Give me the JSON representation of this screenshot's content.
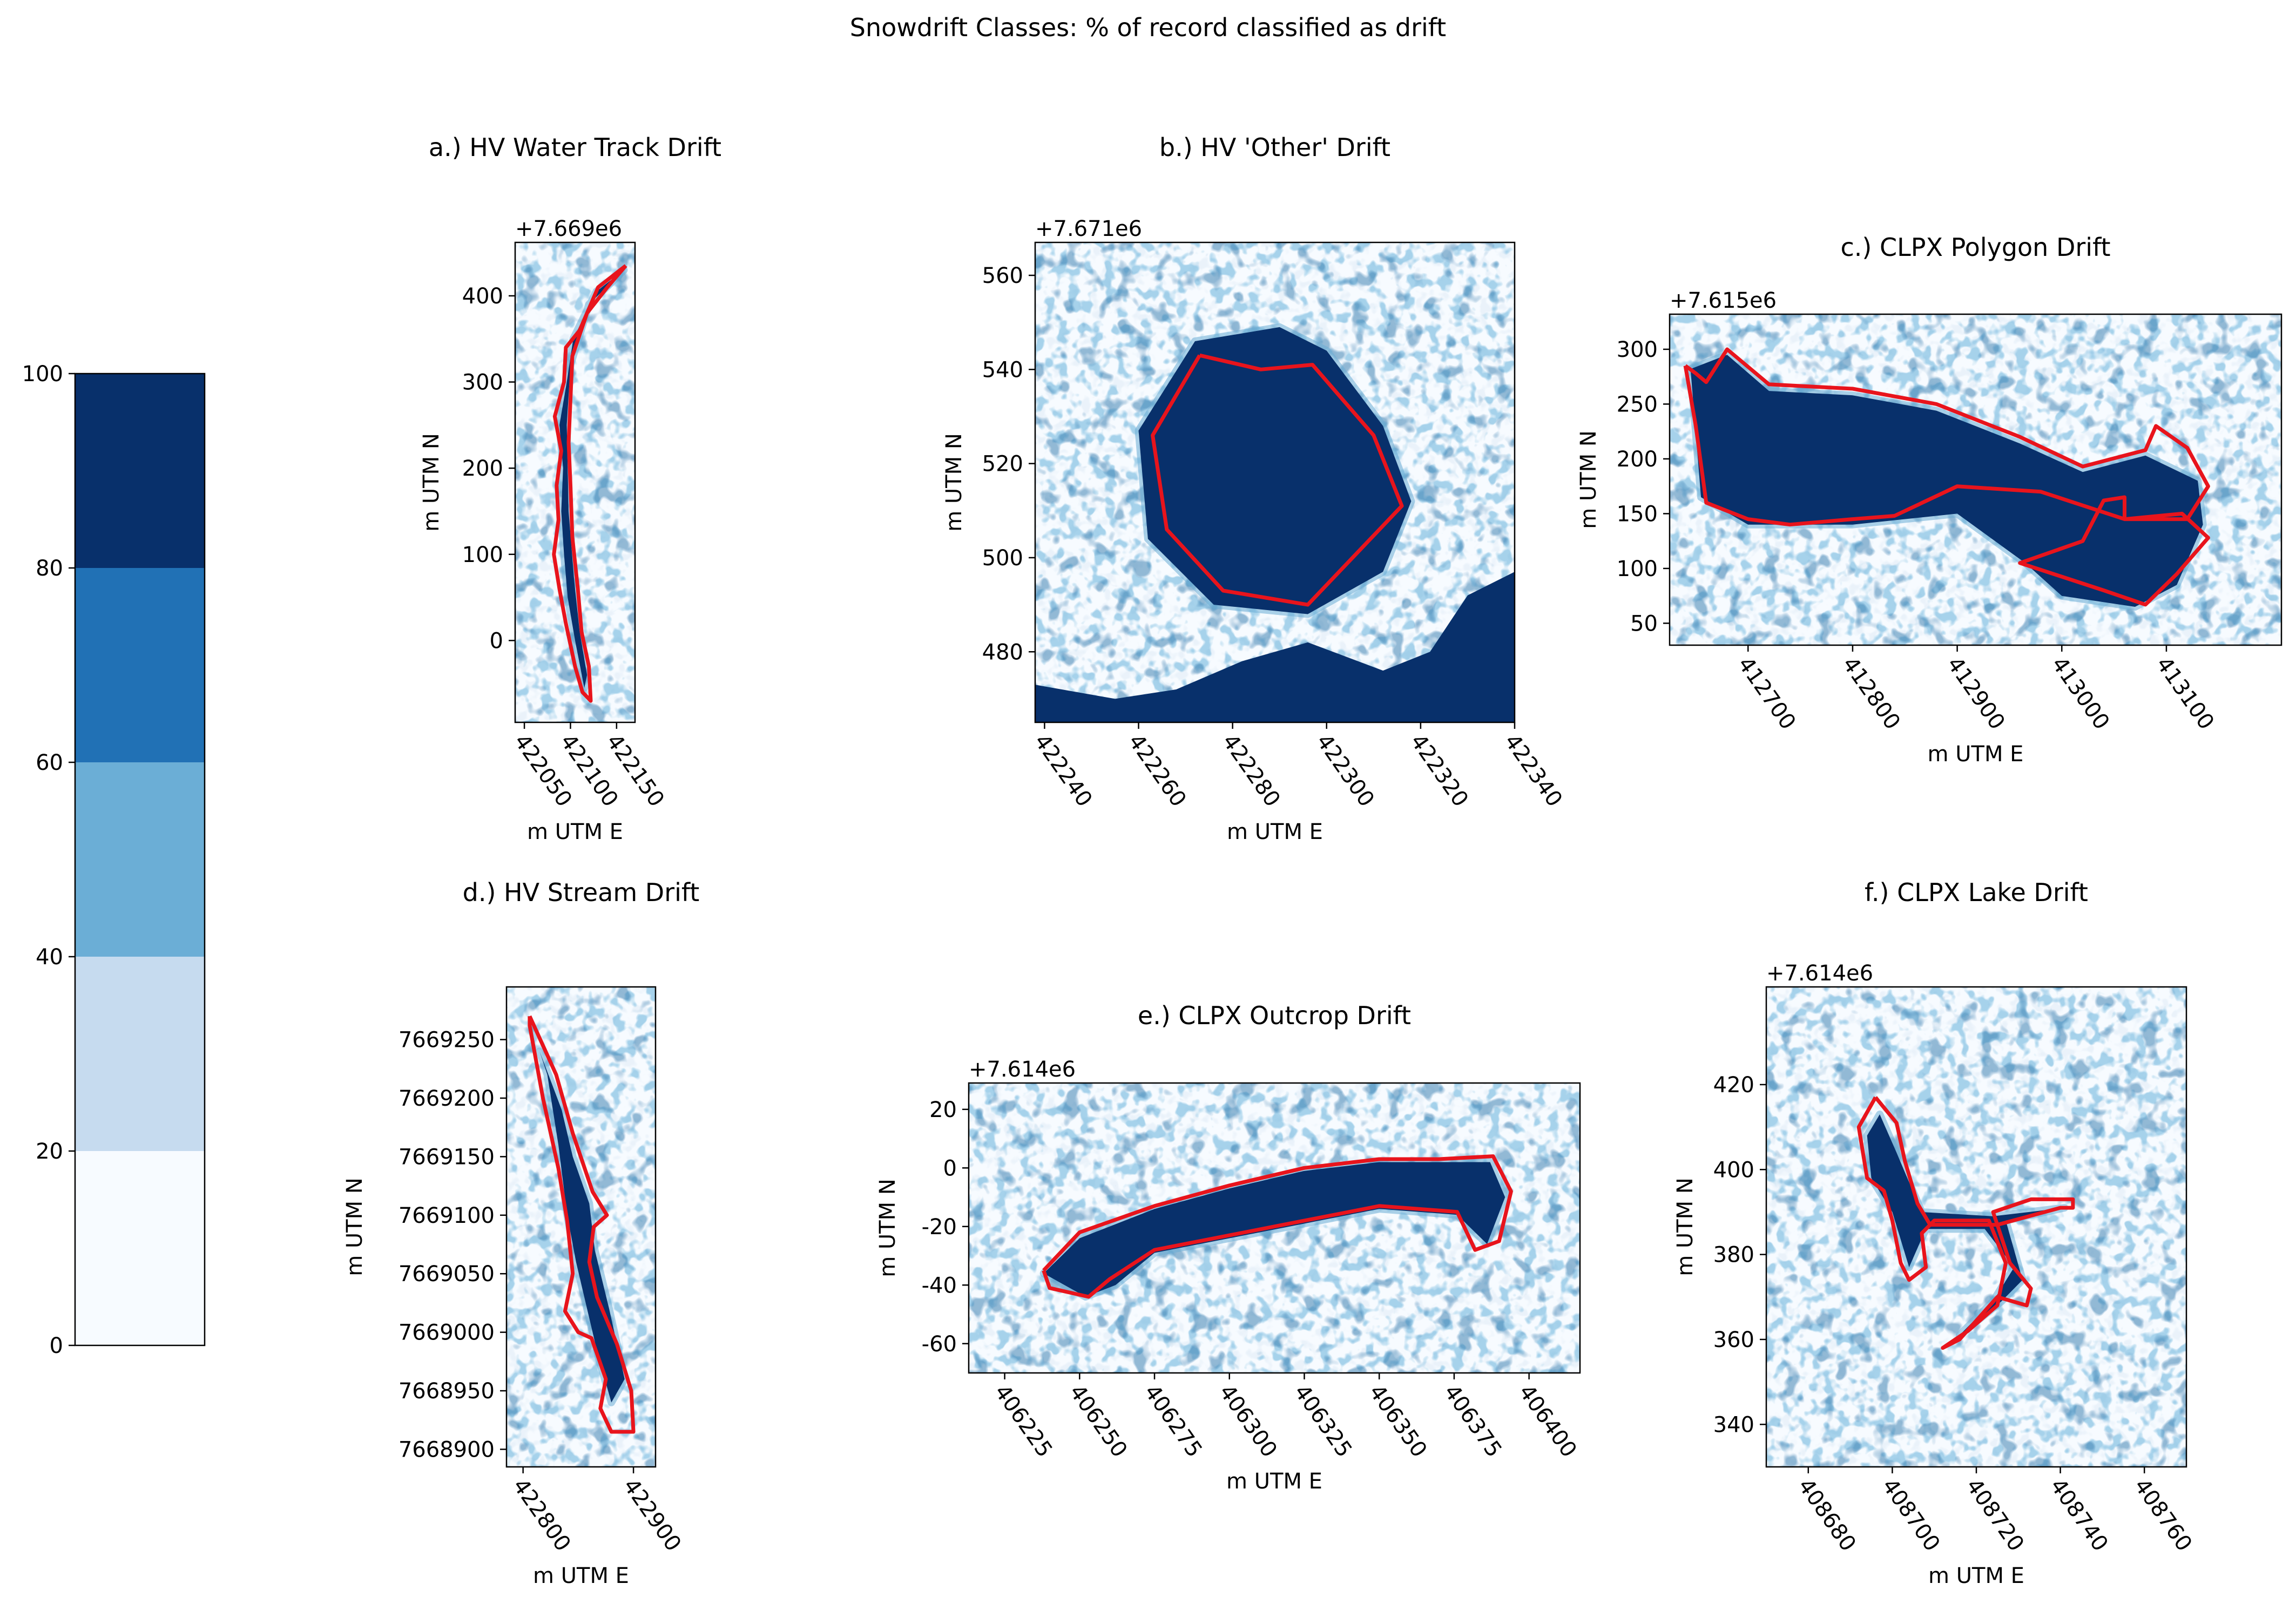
{
  "figure": {
    "suptitle": "Snowdrift Classes: % of record classified as drift",
    "colors": {
      "class_0_20": "#f7fbff",
      "class_20_40": "#c6dbef",
      "class_40_60": "#6baed6",
      "class_60_80": "#2171b5",
      "class_80_100": "#08306b",
      "boundary": "#e8141c"
    }
  },
  "colorbar": {
    "ticks": [
      "0",
      "20",
      "40",
      "60",
      "80",
      "100"
    ],
    "bins": [
      {
        "from": 0,
        "to": 20,
        "color": "#f7fbff"
      },
      {
        "from": 20,
        "to": 40,
        "color": "#c6dbef"
      },
      {
        "from": 40,
        "to": 60,
        "color": "#6baed6"
      },
      {
        "from": 60,
        "to": 80,
        "color": "#2171b5"
      },
      {
        "from": 80,
        "to": 100,
        "color": "#08306b"
      }
    ]
  },
  "chart_data": [
    {
      "id": "a",
      "type": "heatmap",
      "title": "a.) HV Water Track Drift",
      "xlabel": "m UTM E",
      "ylabel": "m UTM N",
      "y_offset_label": "+7.669e6",
      "xlim": [
        422040,
        422170
      ],
      "ylim": [
        -95,
        462
      ],
      "xticks": [
        422050,
        422100,
        422150
      ],
      "yticks": [
        0,
        100,
        200,
        300,
        400
      ],
      "boundary": [
        [
          422160,
          435
        ],
        [
          422130,
          410
        ],
        [
          422110,
          360
        ],
        [
          422095,
          340
        ],
        [
          422093,
          300
        ],
        [
          422083,
          260
        ],
        [
          422090,
          220
        ],
        [
          422085,
          180
        ],
        [
          422087,
          140
        ],
        [
          422082,
          100
        ],
        [
          422088,
          60
        ],
        [
          422095,
          20
        ],
        [
          422105,
          -30
        ],
        [
          422113,
          -60
        ],
        [
          422122,
          -70
        ],
        [
          422120,
          -30
        ],
        [
          422112,
          10
        ],
        [
          422108,
          60
        ],
        [
          422102,
          120
        ],
        [
          422100,
          180
        ],
        [
          422098,
          230
        ],
        [
          422100,
          280
        ],
        [
          422102,
          330
        ],
        [
          422118,
          380
        ],
        [
          422140,
          410
        ],
        [
          422160,
          435
        ]
      ],
      "drift_core": [
        [
          422158,
          430
        ],
        [
          422128,
          405
        ],
        [
          422103,
          350
        ],
        [
          422096,
          300
        ],
        [
          422088,
          250
        ],
        [
          422092,
          200
        ],
        [
          422090,
          150
        ],
        [
          422093,
          100
        ],
        [
          422097,
          50
        ],
        [
          422105,
          0
        ],
        [
          422115,
          -55
        ],
        [
          422118,
          -40
        ],
        [
          422110,
          10
        ],
        [
          422104,
          70
        ],
        [
          422098,
          150
        ],
        [
          422096,
          250
        ],
        [
          422100,
          320
        ],
        [
          422120,
          390
        ],
        [
          422158,
          430
        ]
      ]
    },
    {
      "id": "b",
      "type": "heatmap",
      "title": "b.) HV 'Other' Drift",
      "xlabel": "m UTM E",
      "ylabel": "m UTM N",
      "y_offset_label": "+7.671e6",
      "xlim": [
        422238,
        422340
      ],
      "ylim": [
        465,
        567
      ],
      "xticks": [
        422240,
        422260,
        422280,
        422300,
        422320,
        422340
      ],
      "yticks": [
        480,
        500,
        520,
        540,
        560
      ],
      "boundary": [
        [
          422273,
          543
        ],
        [
          422286,
          540
        ],
        [
          422297,
          541
        ],
        [
          422310,
          526
        ],
        [
          422316,
          511
        ],
        [
          422296,
          490
        ],
        [
          422278,
          493
        ],
        [
          422266,
          506
        ],
        [
          422263,
          526
        ],
        [
          422273,
          543
        ]
      ],
      "drift_core": [
        [
          422272,
          546
        ],
        [
          422290,
          549
        ],
        [
          422300,
          544
        ],
        [
          422312,
          528
        ],
        [
          422318,
          512
        ],
        [
          422312,
          497
        ],
        [
          422296,
          488
        ],
        [
          422276,
          490
        ],
        [
          422262,
          504
        ],
        [
          422260,
          527
        ],
        [
          422272,
          546
        ]
      ],
      "drift_bottom": [
        [
          422238,
          465
        ],
        [
          422238,
          473
        ],
        [
          422255,
          470
        ],
        [
          422268,
          472
        ],
        [
          422282,
          478
        ],
        [
          422296,
          482
        ],
        [
          422312,
          476
        ],
        [
          422322,
          480
        ],
        [
          422330,
          492
        ],
        [
          422340,
          497
        ],
        [
          422340,
          465
        ]
      ]
    },
    {
      "id": "c",
      "type": "heatmap",
      "title": "c.) CLPX Polygon Drift",
      "xlabel": "m UTM E",
      "ylabel": "m UTM N",
      "y_offset_label": "+7.615e6",
      "xlim": [
        412625,
        413210
      ],
      "ylim": [
        30,
        332
      ],
      "xticks": [
        412700,
        412800,
        412900,
        413000,
        413100
      ],
      "yticks": [
        50,
        100,
        150,
        200,
        250,
        300
      ],
      "boundary": [
        [
          412640,
          285
        ],
        [
          412650,
          278
        ],
        [
          412660,
          270
        ],
        [
          412680,
          300
        ],
        [
          412720,
          268
        ],
        [
          412800,
          264
        ],
        [
          412880,
          250
        ],
        [
          412960,
          220
        ],
        [
          413020,
          193
        ],
        [
          413080,
          208
        ],
        [
          413090,
          230
        ],
        [
          413120,
          210
        ],
        [
          413140,
          175
        ],
        [
          413120,
          145
        ],
        [
          413060,
          145
        ],
        [
          413060,
          165
        ],
        [
          413040,
          162
        ],
        [
          413020,
          125
        ],
        [
          412960,
          105
        ],
        [
          413040,
          80
        ],
        [
          413080,
          67
        ],
        [
          413110,
          95
        ],
        [
          413140,
          128
        ],
        [
          413115,
          150
        ],
        [
          413060,
          145
        ],
        [
          412980,
          170
        ],
        [
          412900,
          175
        ],
        [
          412840,
          148
        ],
        [
          412800,
          145
        ],
        [
          412740,
          140
        ],
        [
          412700,
          145
        ],
        [
          412660,
          160
        ],
        [
          412650,
          230
        ],
        [
          412640,
          285
        ]
      ],
      "drift_core": [
        [
          412645,
          282
        ],
        [
          412680,
          295
        ],
        [
          412720,
          262
        ],
        [
          412800,
          258
        ],
        [
          412880,
          244
        ],
        [
          412960,
          214
        ],
        [
          413020,
          188
        ],
        [
          413080,
          203
        ],
        [
          413130,
          180
        ],
        [
          413135,
          140
        ],
        [
          413110,
          85
        ],
        [
          413070,
          65
        ],
        [
          413000,
          75
        ],
        [
          412965,
          105
        ],
        [
          412900,
          150
        ],
        [
          412800,
          140
        ],
        [
          412700,
          140
        ],
        [
          412655,
          165
        ],
        [
          412645,
          282
        ]
      ]
    },
    {
      "id": "d",
      "type": "heatmap",
      "title": "d.) HV Stream Drift",
      "xlabel": "m UTM E",
      "ylabel": "m UTM N",
      "xlim": [
        422785,
        422920
      ],
      "ylim": [
        7668885,
        7669295
      ],
      "xticks": [
        422800,
        422900
      ],
      "yticks": [
        7668900,
        7668950,
        7669000,
        7669050,
        7669100,
        7669150,
        7669200,
        7669250
      ],
      "boundary": [
        [
          422806,
          7669270
        ],
        [
          422830,
          7669220
        ],
        [
          422845,
          7669170
        ],
        [
          422863,
          7669120
        ],
        [
          422876,
          7669100
        ],
        [
          422864,
          7669090
        ],
        [
          422860,
          7669060
        ],
        [
          422867,
          7669030
        ],
        [
          422885,
          7668990
        ],
        [
          422898,
          7668950
        ],
        [
          422900,
          7668915
        ],
        [
          422880,
          7668915
        ],
        [
          422870,
          7668935
        ],
        [
          422875,
          7668960
        ],
        [
          422862,
          7668995
        ],
        [
          422850,
          7669000
        ],
        [
          422838,
          7669018
        ],
        [
          422845,
          7669050
        ],
        [
          422840,
          7669095
        ],
        [
          422832,
          7669140
        ],
        [
          422818,
          7669200
        ],
        [
          422806,
          7669262
        ],
        [
          422806,
          7669270
        ]
      ],
      "drift_core": [
        [
          422815,
          7669240
        ],
        [
          422835,
          7669190
        ],
        [
          422845,
          7669150
        ],
        [
          422860,
          7669110
        ],
        [
          422865,
          7669070
        ],
        [
          422878,
          7669020
        ],
        [
          422892,
          7668960
        ],
        [
          422880,
          7668940
        ],
        [
          422868,
          7668980
        ],
        [
          422858,
          7669020
        ],
        [
          422848,
          7669060
        ],
        [
          422840,
          7669100
        ],
        [
          422832,
          7669160
        ],
        [
          422822,
          7669220
        ],
        [
          422815,
          7669240
        ]
      ]
    },
    {
      "id": "e",
      "type": "heatmap",
      "title": "e.) CLPX Outcrop Drift",
      "xlabel": "m UTM E",
      "ylabel": "m UTM N",
      "y_offset_label": "+7.614e6",
      "xlim": [
        406213,
        406417
      ],
      "ylim": [
        -70,
        29
      ],
      "xticks": [
        406225,
        406250,
        406275,
        406300,
        406325,
        406350,
        406375,
        406400
      ],
      "yticks": [
        -60,
        -40,
        -20,
        0,
        20
      ],
      "boundary": [
        [
          406238,
          -35
        ],
        [
          406250,
          -22
        ],
        [
          406275,
          -13
        ],
        [
          406300,
          -6
        ],
        [
          406325,
          0
        ],
        [
          406350,
          3
        ],
        [
          406370,
          3
        ],
        [
          406388,
          4
        ],
        [
          406394,
          -8
        ],
        [
          406390,
          -25
        ],
        [
          406382,
          -28
        ],
        [
          406376,
          -15
        ],
        [
          406350,
          -13
        ],
        [
          406325,
          -18
        ],
        [
          406300,
          -23
        ],
        [
          406275,
          -28
        ],
        [
          406260,
          -38
        ],
        [
          406253,
          -44
        ],
        [
          406240,
          -41
        ],
        [
          406238,
          -35
        ]
      ],
      "drift_core": [
        [
          406238,
          -36
        ],
        [
          406250,
          -24
        ],
        [
          406275,
          -14
        ],
        [
          406300,
          -7
        ],
        [
          406325,
          -1
        ],
        [
          406350,
          2
        ],
        [
          406372,
          2
        ],
        [
          406387,
          2
        ],
        [
          406392,
          -10
        ],
        [
          406386,
          -26
        ],
        [
          406376,
          -16
        ],
        [
          406350,
          -14
        ],
        [
          406325,
          -19
        ],
        [
          406300,
          -24
        ],
        [
          406275,
          -29
        ],
        [
          406262,
          -40
        ],
        [
          406252,
          -44
        ],
        [
          406238,
          -36
        ]
      ]
    },
    {
      "id": "f",
      "type": "heatmap",
      "title": "f.) CLPX Lake Drift",
      "xlabel": "m UTM E",
      "ylabel": "m UTM N",
      "y_offset_label": "+7.614e6",
      "xlim": [
        408670,
        408770
      ],
      "ylim": [
        330,
        443
      ],
      "xticks": [
        408680,
        408700,
        408720,
        408740,
        408760
      ],
      "yticks": [
        340,
        360,
        380,
        400,
        420
      ],
      "boundary": [
        [
          408696,
          417
        ],
        [
          408701,
          411
        ],
        [
          408703,
          402
        ],
        [
          408706,
          392
        ],
        [
          408709,
          387
        ],
        [
          408725,
          387
        ],
        [
          408740,
          391
        ],
        [
          408743,
          391
        ],
        [
          408743,
          393
        ],
        [
          408733,
          393
        ],
        [
          408724,
          390
        ],
        [
          408728,
          378
        ],
        [
          408733,
          372
        ],
        [
          408732,
          368
        ],
        [
          408725,
          370
        ],
        [
          408716,
          360
        ],
        [
          408712,
          358
        ],
        [
          408718,
          362
        ],
        [
          408725,
          368
        ],
        [
          408727,
          378
        ],
        [
          408723,
          388
        ],
        [
          408710,
          388
        ],
        [
          408707,
          385
        ],
        [
          408708,
          377
        ],
        [
          408704,
          374
        ],
        [
          408702,
          378
        ],
        [
          408700,
          388
        ],
        [
          408698,
          395
        ],
        [
          408694,
          398
        ],
        [
          408692,
          410
        ],
        [
          408696,
          417
        ]
      ],
      "drift_core": [
        [
          408697,
          413
        ],
        [
          408701,
          404
        ],
        [
          408707,
          390
        ],
        [
          408724,
          389
        ],
        [
          408741,
          391
        ],
        [
          408727,
          388
        ],
        [
          408731,
          374
        ],
        [
          408726,
          369
        ],
        [
          408716,
          361
        ],
        [
          408724,
          369
        ],
        [
          408729,
          377
        ],
        [
          408722,
          386
        ],
        [
          408708,
          386
        ],
        [
          408704,
          377
        ],
        [
          408700,
          390
        ],
        [
          408695,
          398
        ],
        [
          408694,
          408
        ],
        [
          408697,
          413
        ]
      ]
    }
  ]
}
